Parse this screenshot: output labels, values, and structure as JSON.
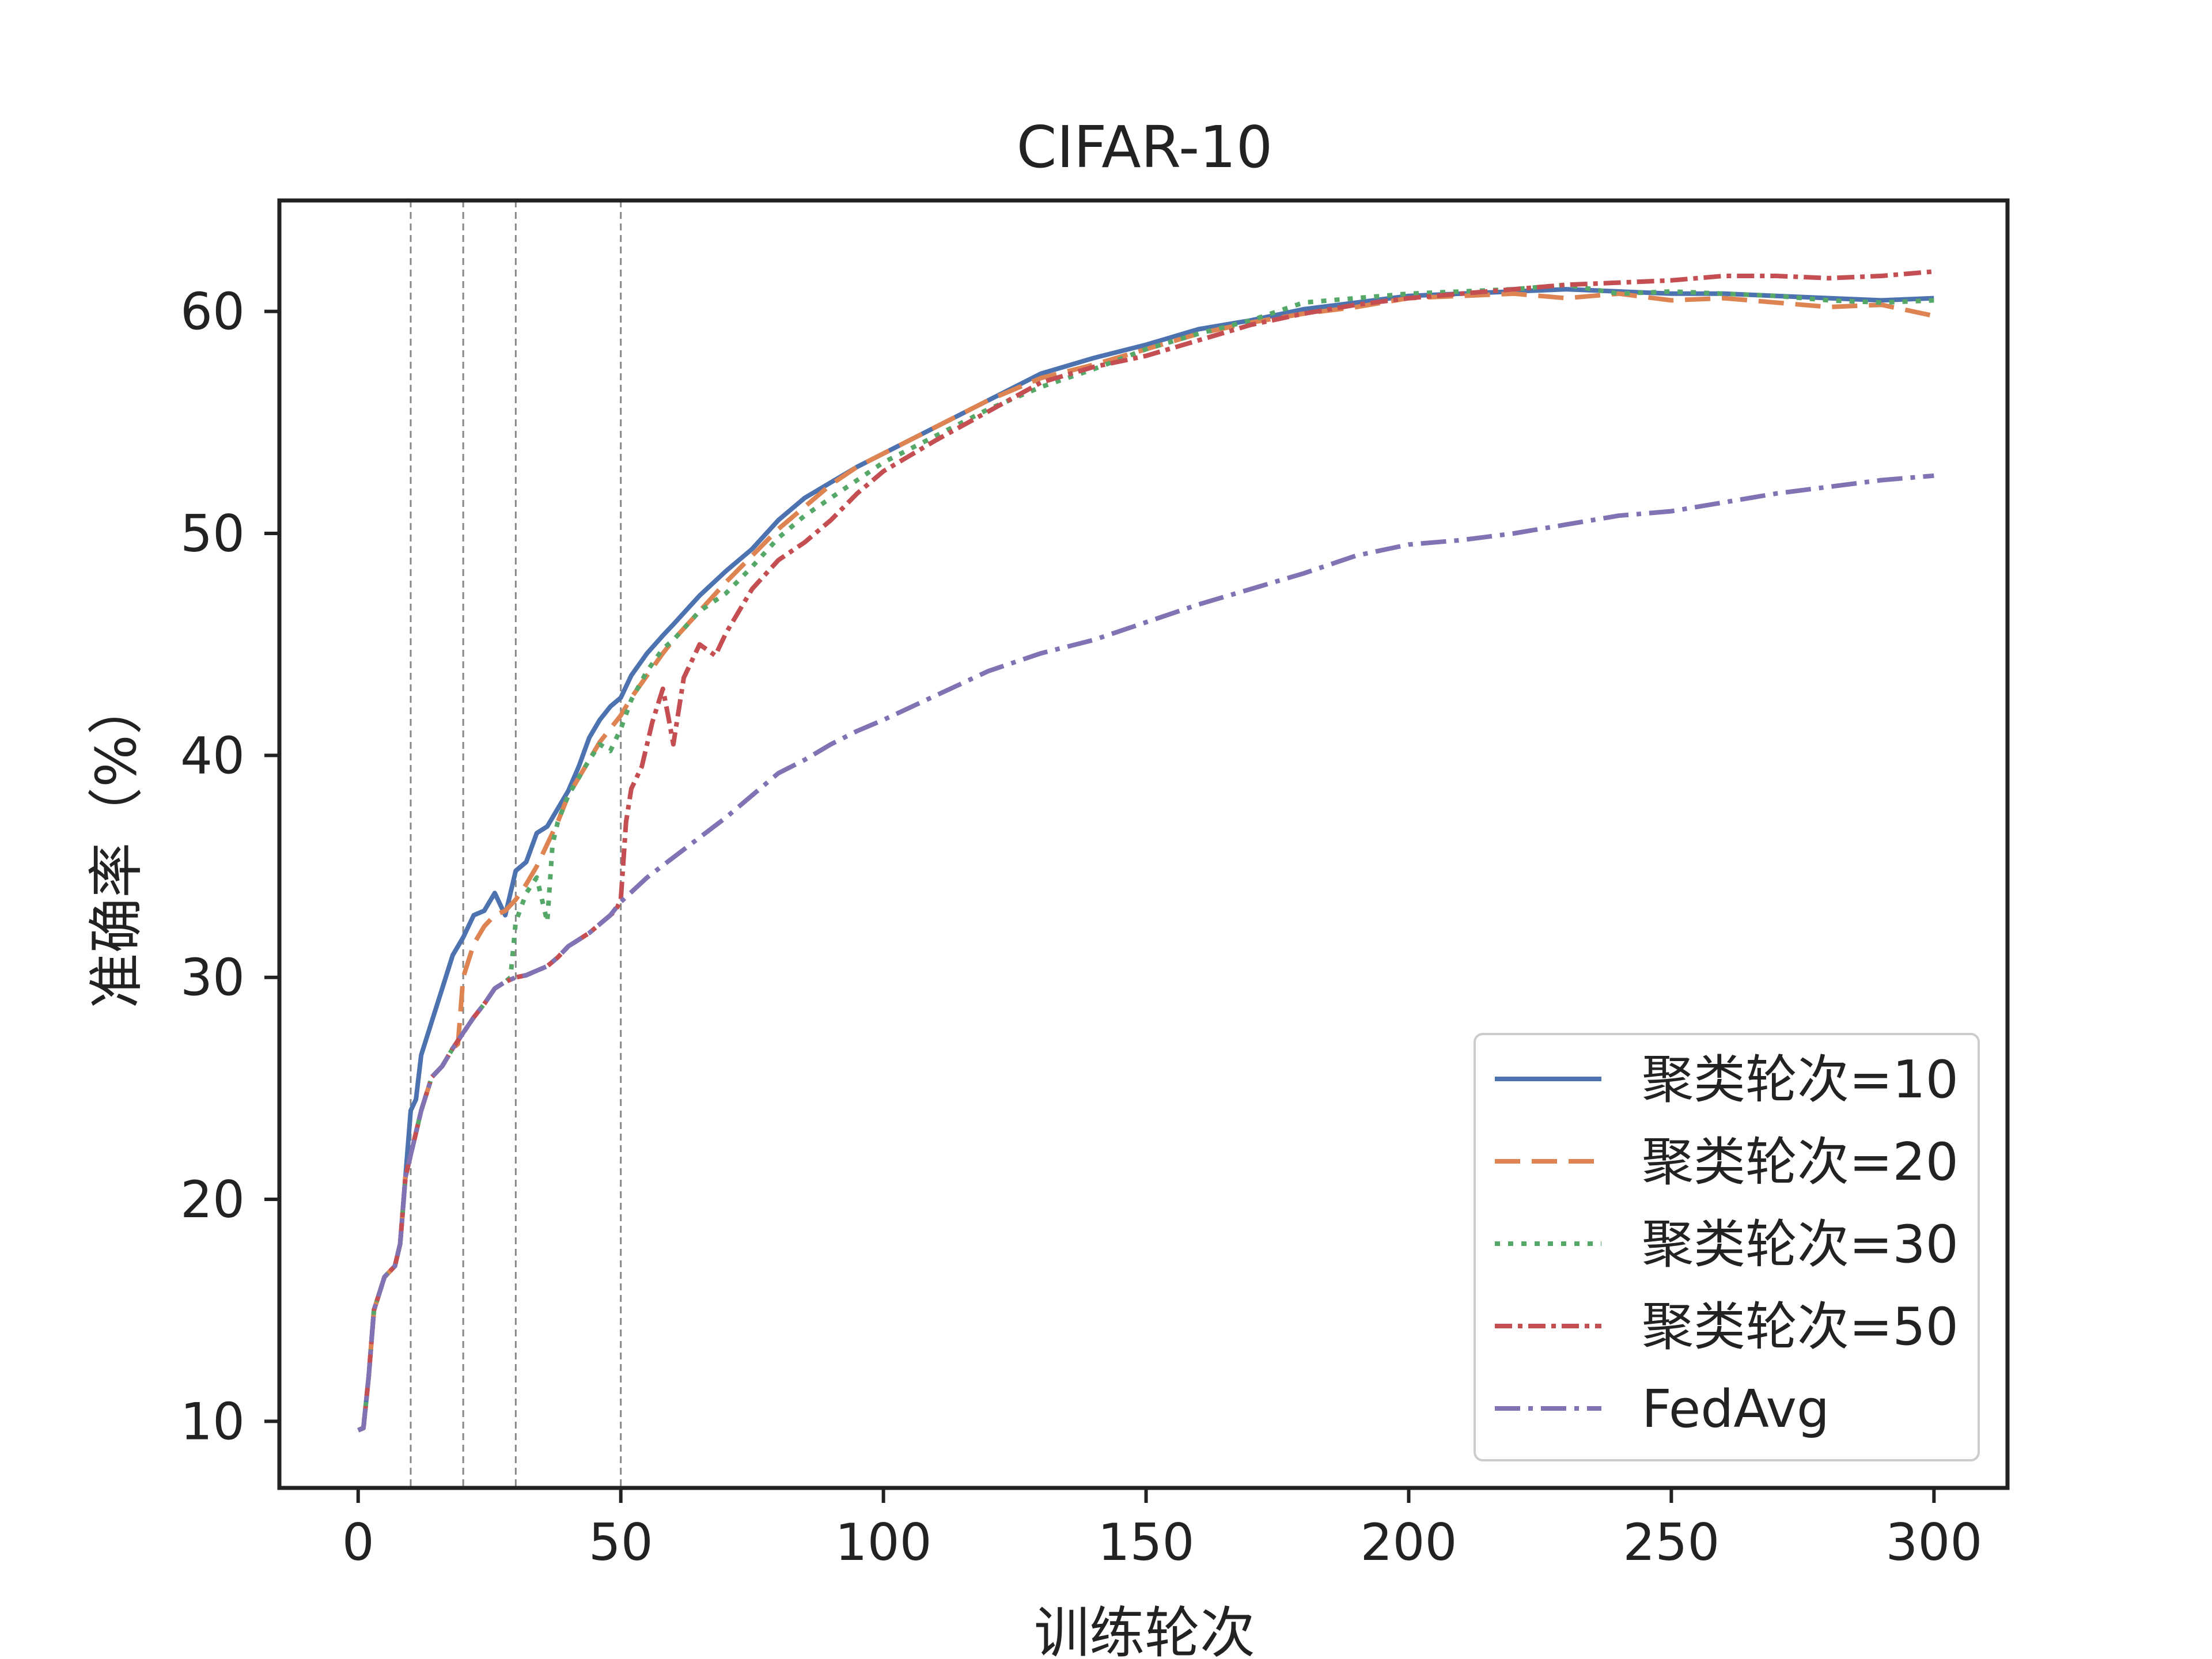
{
  "chart_data": {
    "type": "line",
    "title": "CIFAR-10",
    "xlabel": "训练轮次",
    "ylabel": "准确率（%）",
    "xlim": [
      -15,
      314
    ],
    "ylim": [
      7,
      65
    ],
    "xticks": [
      0,
      50,
      100,
      150,
      200,
      250,
      300
    ],
    "yticks": [
      10,
      20,
      30,
      40,
      50,
      60
    ],
    "xtick_labels": [
      "0",
      "50",
      "100",
      "150",
      "200",
      "250",
      "300"
    ],
    "ytick_labels": [
      "10",
      "20",
      "30",
      "40",
      "50",
      "60"
    ],
    "vertical_reference_lines": [
      10,
      20,
      30,
      50
    ],
    "grid": false,
    "legend_position": "lower-right",
    "series": [
      {
        "name": "聚类轮次=10",
        "color": "#4c72b0",
        "style": "solid",
        "x": [
          0,
          1,
          2,
          3,
          5,
          7,
          8,
          9,
          10,
          11,
          12,
          14,
          16,
          18,
          20,
          22,
          24,
          26,
          28,
          30,
          32,
          34,
          36,
          38,
          40,
          42,
          44,
          46,
          48,
          50,
          52,
          55,
          58,
          60,
          65,
          70,
          75,
          80,
          85,
          90,
          95,
          100,
          110,
          120,
          130,
          140,
          150,
          160,
          170,
          180,
          190,
          200,
          210,
          220,
          230,
          240,
          250,
          260,
          270,
          280,
          290,
          300
        ],
        "y": [
          9.6,
          9.7,
          12.0,
          15.0,
          16.5,
          17.0,
          18.0,
          21.0,
          24.0,
          24.5,
          26.5,
          28.0,
          29.5,
          31.0,
          31.8,
          32.8,
          33.0,
          33.8,
          32.8,
          34.8,
          35.2,
          36.5,
          36.8,
          37.6,
          38.4,
          39.5,
          40.8,
          41.6,
          42.2,
          42.6,
          43.6,
          44.6,
          45.4,
          45.9,
          47.2,
          48.3,
          49.3,
          50.6,
          51.6,
          52.3,
          53.0,
          53.6,
          54.8,
          56.0,
          57.2,
          57.9,
          58.5,
          59.2,
          59.6,
          60.1,
          60.4,
          60.7,
          60.8,
          60.9,
          61.0,
          60.9,
          60.8,
          60.8,
          60.7,
          60.6,
          60.5,
          60.6
        ]
      },
      {
        "name": "聚类轮次=20",
        "color": "#dd8452",
        "style": "dashed",
        "x": [
          0,
          1,
          2,
          3,
          5,
          7,
          8,
          9,
          10,
          12,
          14,
          16,
          18,
          19,
          20,
          22,
          24,
          26,
          28,
          30,
          32,
          34,
          36,
          38,
          40,
          42,
          44,
          46,
          48,
          50,
          52,
          55,
          58,
          60,
          65,
          70,
          75,
          80,
          85,
          90,
          95,
          100,
          110,
          120,
          130,
          140,
          150,
          160,
          170,
          180,
          190,
          200,
          210,
          220,
          230,
          240,
          250,
          260,
          270,
          280,
          290,
          300
        ],
        "y": [
          9.6,
          9.7,
          12.0,
          15.0,
          16.5,
          17.0,
          18.0,
          21.0,
          22.0,
          24.0,
          25.5,
          26.0,
          26.8,
          27.0,
          30.0,
          31.5,
          32.3,
          32.8,
          33.0,
          33.5,
          34.2,
          35.0,
          36.0,
          37.0,
          38.2,
          39.0,
          39.8,
          40.6,
          41.2,
          41.8,
          42.6,
          43.6,
          44.6,
          45.2,
          46.5,
          47.8,
          49.0,
          50.2,
          51.2,
          52.2,
          53.0,
          53.6,
          54.8,
          56.0,
          57.0,
          57.6,
          58.3,
          59.0,
          59.5,
          59.9,
          60.2,
          60.6,
          60.7,
          60.8,
          60.6,
          60.8,
          60.5,
          60.6,
          60.4,
          60.2,
          60.3,
          59.8
        ]
      },
      {
        "name": "聚类轮次=30",
        "color": "#55a868",
        "style": "dotted",
        "x": [
          0,
          1,
          2,
          3,
          5,
          7,
          8,
          9,
          10,
          12,
          14,
          16,
          18,
          20,
          22,
          24,
          26,
          28,
          29,
          30,
          32,
          34,
          36,
          37,
          38,
          40,
          42,
          44,
          46,
          48,
          50,
          52,
          55,
          58,
          60,
          65,
          70,
          75,
          80,
          85,
          90,
          95,
          100,
          110,
          120,
          130,
          140,
          150,
          160,
          170,
          180,
          190,
          200,
          210,
          220,
          230,
          240,
          250,
          260,
          270,
          280,
          290,
          300
        ],
        "y": [
          9.6,
          9.7,
          12.0,
          15.0,
          16.5,
          17.0,
          18.0,
          21.0,
          22.0,
          24.0,
          25.5,
          26.0,
          26.8,
          27.5,
          28.2,
          28.8,
          29.5,
          29.8,
          30.0,
          32.5,
          33.8,
          34.5,
          32.5,
          36.0,
          37.0,
          38.2,
          39.0,
          39.8,
          40.5,
          40.2,
          41.2,
          42.5,
          43.8,
          44.8,
          45.2,
          46.5,
          47.3,
          48.5,
          49.8,
          50.8,
          51.6,
          52.4,
          53.2,
          54.4,
          55.6,
          56.6,
          57.4,
          58.3,
          59.0,
          59.6,
          60.4,
          60.6,
          60.8,
          60.9,
          61.0,
          61.2,
          60.8,
          60.9,
          60.8,
          60.7,
          60.5,
          60.4,
          60.5
        ]
      },
      {
        "name": "聚类轮次=50",
        "color": "#c44e52",
        "style": "dashdot-dense",
        "x": [
          0,
          1,
          2,
          3,
          5,
          7,
          8,
          9,
          10,
          12,
          14,
          16,
          18,
          20,
          22,
          24,
          26,
          28,
          30,
          32,
          34,
          36,
          38,
          40,
          42,
          44,
          46,
          48,
          49,
          50,
          51,
          52,
          54,
          56,
          58,
          59,
          60,
          62,
          65,
          68,
          70,
          75,
          80,
          85,
          90,
          95,
          100,
          110,
          120,
          130,
          140,
          150,
          160,
          170,
          180,
          190,
          200,
          210,
          220,
          230,
          240,
          250,
          260,
          270,
          280,
          290,
          300
        ],
        "y": [
          9.6,
          9.7,
          12.0,
          15.0,
          16.5,
          17.0,
          18.0,
          21.0,
          22.0,
          24.0,
          25.5,
          26.0,
          26.8,
          27.5,
          28.2,
          28.8,
          29.5,
          29.8,
          30.0,
          30.1,
          30.3,
          30.5,
          30.9,
          31.4,
          31.7,
          32.0,
          32.4,
          32.8,
          33.0,
          33.5,
          37.0,
          38.5,
          39.5,
          41.5,
          43.0,
          41.8,
          40.5,
          43.5,
          45.0,
          44.5,
          45.5,
          47.5,
          48.8,
          49.6,
          50.6,
          51.8,
          52.8,
          54.2,
          55.5,
          56.8,
          57.5,
          58.0,
          58.7,
          59.4,
          59.9,
          60.3,
          60.6,
          60.8,
          61.0,
          61.2,
          61.3,
          61.4,
          61.6,
          61.6,
          61.5,
          61.6,
          61.8
        ]
      },
      {
        "name": "FedAvg",
        "color": "#8172b3",
        "style": "dashdot",
        "x": [
          0,
          1,
          2,
          3,
          5,
          7,
          8,
          9,
          10,
          12,
          14,
          16,
          18,
          20,
          22,
          24,
          26,
          28,
          30,
          32,
          34,
          36,
          38,
          40,
          42,
          44,
          46,
          48,
          50,
          55,
          60,
          65,
          70,
          75,
          80,
          85,
          90,
          95,
          100,
          110,
          120,
          130,
          140,
          150,
          160,
          170,
          180,
          190,
          200,
          210,
          220,
          230,
          240,
          250,
          260,
          270,
          280,
          290,
          300
        ],
        "y": [
          9.6,
          9.7,
          12.0,
          15.0,
          16.5,
          17.0,
          18.0,
          21.0,
          22.0,
          24.0,
          25.5,
          26.0,
          26.8,
          27.5,
          28.2,
          28.8,
          29.5,
          29.8,
          30.0,
          30.1,
          30.3,
          30.5,
          30.9,
          31.4,
          31.7,
          32.0,
          32.4,
          32.8,
          33.4,
          34.5,
          35.4,
          36.3,
          37.2,
          38.2,
          39.2,
          39.8,
          40.5,
          41.1,
          41.6,
          42.7,
          43.8,
          44.6,
          45.2,
          46.0,
          46.8,
          47.5,
          48.2,
          49.0,
          49.5,
          49.7,
          50.0,
          50.4,
          50.8,
          51.0,
          51.4,
          51.8,
          52.1,
          52.4,
          52.6
        ]
      }
    ]
  }
}
